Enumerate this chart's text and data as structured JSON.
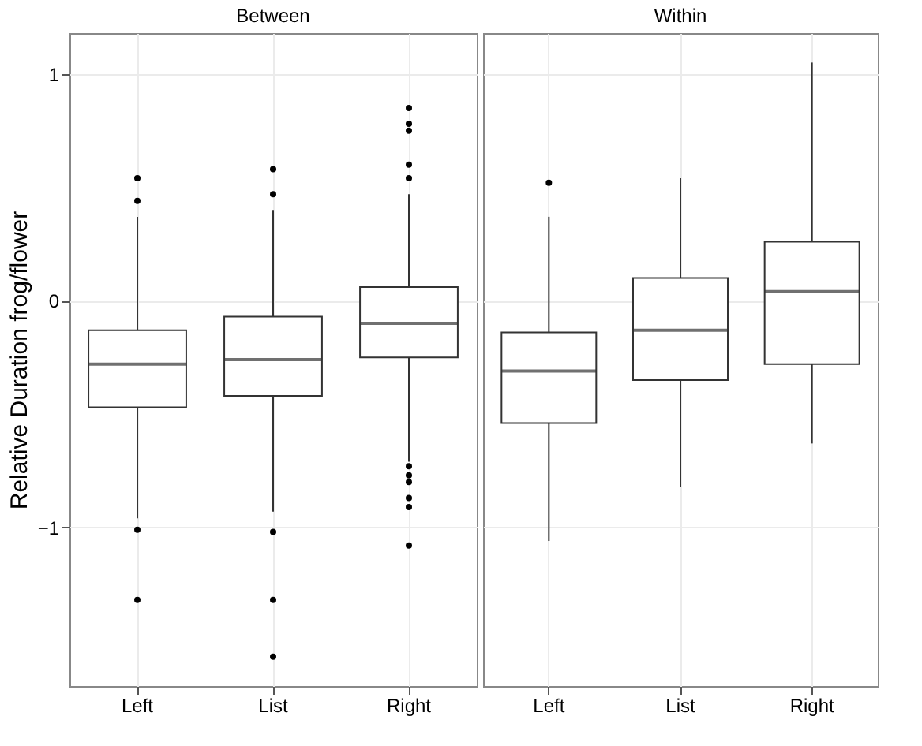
{
  "chart_data": [
    {
      "type": "box",
      "title": "Between",
      "ylabel": "Relative Duration frog/flower",
      "categories": [
        "Left",
        "List",
        "Right"
      ],
      "ylim": [
        -1.7,
        1.18
      ],
      "yticks": [
        -1,
        0,
        1
      ],
      "grid": true,
      "marker": "circle",
      "color": "#333333",
      "boxes": [
        {
          "low": -0.96,
          "q1": -0.47,
          "median": -0.28,
          "q3": -0.13,
          "high": 0.37,
          "outliers": [
            0.54,
            0.44,
            -1.01,
            -1.32
          ]
        },
        {
          "low": -0.93,
          "q1": -0.42,
          "median": -0.26,
          "q3": -0.07,
          "high": 0.4,
          "outliers": [
            0.58,
            0.47,
            -1.02,
            -1.32,
            -1.57
          ]
        },
        {
          "low": -0.71,
          "q1": -0.25,
          "median": -0.1,
          "q3": 0.06,
          "high": 0.47,
          "outliers": [
            0.85,
            0.78,
            0.75,
            0.6,
            0.54,
            -0.73,
            -0.77,
            -0.8,
            -0.87,
            -0.91,
            -1.08
          ]
        }
      ]
    },
    {
      "type": "box",
      "title": "Within",
      "categories": [
        "Left",
        "List",
        "Right"
      ],
      "ylim": [
        -1.7,
        1.18
      ],
      "yticks": [
        -1,
        0,
        1
      ],
      "grid": true,
      "marker": "circle",
      "tick_labels": "x",
      "color": "#333333",
      "boxes": [
        {
          "low": -1.06,
          "q1": -0.54,
          "median": -0.31,
          "q3": -0.14,
          "high": 0.37,
          "outliers": [
            0.52
          ]
        },
        {
          "low": -0.82,
          "q1": -0.35,
          "median": -0.13,
          "q3": 0.1,
          "high": 0.54
        },
        {
          "low": -0.63,
          "q1": -0.28,
          "median": 0.04,
          "q3": 0.26,
          "high": 1.05
        }
      ]
    }
  ]
}
